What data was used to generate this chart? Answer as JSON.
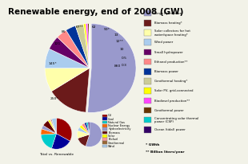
{
  "title": "Renewable energy, end of 2008 (GW)",
  "title_fontsize": 7.5,
  "main_pie": {
    "values": [
      860,
      250,
      145,
      121,
      85,
      67,
      62,
      50,
      13,
      12,
      10,
      0.5,
      0.3
    ],
    "labels": [
      "860",
      "250*",
      "145*",
      "121",
      "85",
      "67**",
      "62",
      "50*",
      "13",
      "12**",
      "10",
      "0.5",
      "0.3"
    ],
    "colors": [
      "#9999cc",
      "#6b1a1a",
      "#ffffaa",
      "#aaccee",
      "#660066",
      "#ff8888",
      "#003399",
      "#cccc99",
      "#ffff00",
      "#ff44ff",
      "#663300",
      "#00cccc",
      "#330066"
    ]
  },
  "legend_items": [
    {
      "label": "Large hydropower",
      "color": "#9999cc"
    },
    {
      "label": "Biomass heating*",
      "color": "#6b1a1a"
    },
    {
      "label": "Solar collectors for hot\nwater/space heating*",
      "color": "#ffffaa"
    },
    {
      "label": "Wind power",
      "color": "#aaccee"
    },
    {
      "label": "Small hydropower",
      "color": "#660066"
    },
    {
      "label": "Ethanol production**",
      "color": "#ff8888"
    },
    {
      "label": "Biomass power",
      "color": "#003399"
    },
    {
      "label": "Geothermal heating*",
      "color": "#cccc99"
    },
    {
      "label": "Solar PV, grid-connected",
      "color": "#ffff00"
    },
    {
      "label": "Biodiesel production**",
      "color": "#ff44ff"
    },
    {
      "label": "Geothermal power",
      "color": "#663300"
    },
    {
      "label": "Concentrating solar thermal\npower (CSP)",
      "color": "#00cccc"
    },
    {
      "label": "Ocean (tidal) power",
      "color": "#330066"
    }
  ],
  "total_pie": {
    "values": [
      33,
      22,
      19,
      6,
      4,
      7,
      2,
      1,
      1,
      5
    ],
    "colors": [
      "#990000",
      "#000099",
      "#00cccc",
      "#ff6600",
      "#9999cc",
      "#660000",
      "#ffff00",
      "#ff9999",
      "#996633",
      "#aaccee"
    ],
    "labels": [
      "Oil",
      "Coal",
      "Natural Gas",
      "Nuclear Energy",
      "Hydroelectricity",
      "Biomass",
      "Solar",
      "Biofuel",
      "Geothermal",
      "Wind"
    ]
  },
  "renew_pie": {
    "values": [
      55,
      15,
      10,
      5,
      4,
      4,
      3,
      2,
      2
    ],
    "colors": [
      "#9999cc",
      "#6b1a1a",
      "#ffffaa",
      "#aaccee",
      "#ffff00",
      "#ff8888",
      "#003399",
      "#00cccc",
      "#330066"
    ]
  },
  "footnote1": "* GWth",
  "footnote2": "** Billion liters/year",
  "background_color": "#f2f2e8"
}
